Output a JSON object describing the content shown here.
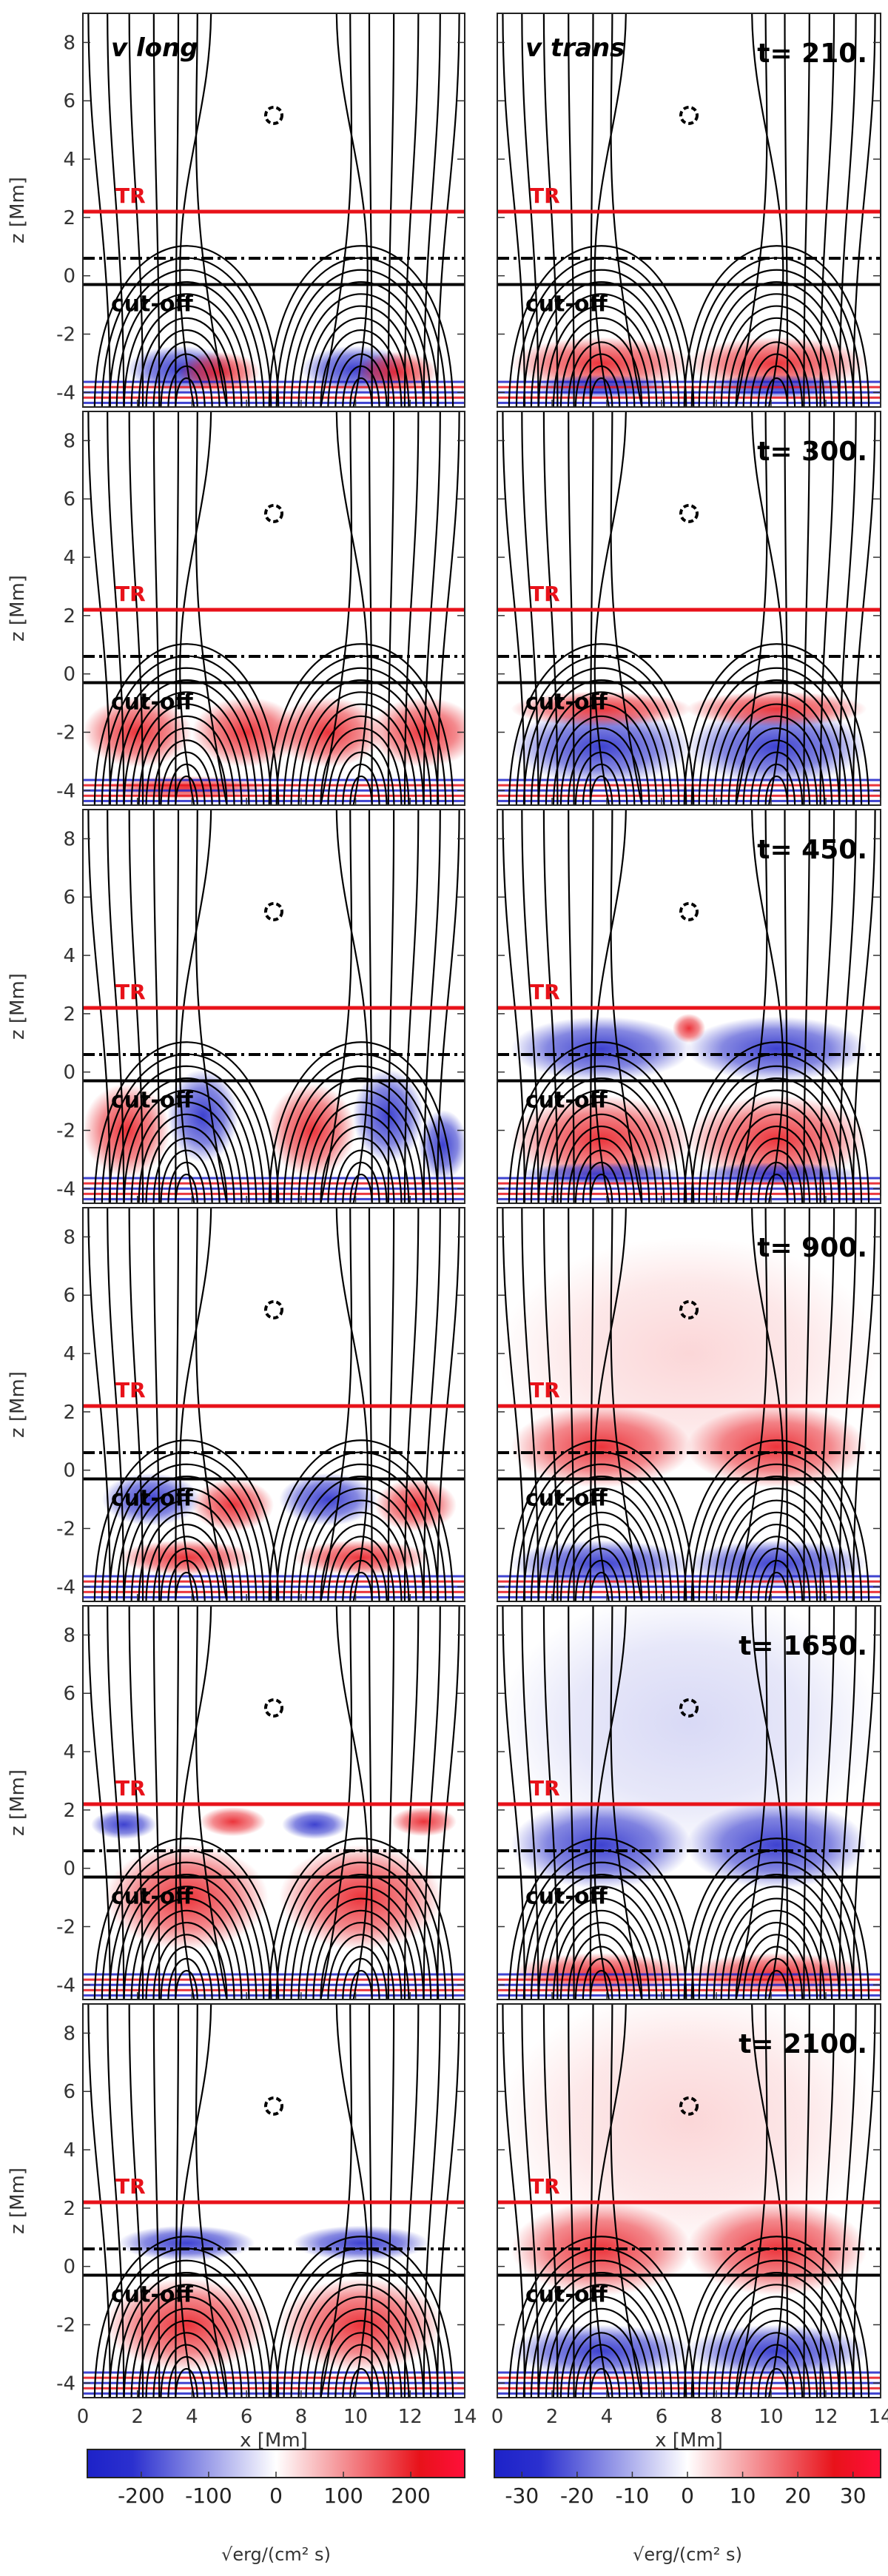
{
  "chart_data": {
    "type": "heatmap",
    "x_axis": {
      "label": "x [Mm]",
      "range": [
        0,
        14
      ],
      "ticks": [
        0,
        2,
        4,
        6,
        8,
        10,
        12,
        14
      ]
    },
    "z_axis": {
      "label": "z [Mm]",
      "range": [
        -4.5,
        9
      ],
      "ticks": [
        -4,
        -2,
        0,
        2,
        4,
        6,
        8
      ]
    },
    "columns": [
      {
        "label": "v long",
        "colorbar": {
          "range": [
            -280,
            280
          ],
          "ticks": [
            -200,
            -100,
            0,
            100,
            200
          ],
          "unit": "√erg/(cm² s)"
        }
      },
      {
        "label": "v trans",
        "colorbar": {
          "range": [
            -35,
            35
          ],
          "ticks": [
            -30,
            -20,
            -10,
            0,
            10,
            20,
            30
          ],
          "unit": "√erg/(cm² s)"
        }
      }
    ],
    "times": [
      "t= 210.",
      "t= 300.",
      "t= 450.",
      "t= 900.",
      "t= 1650.",
      "t= 2100."
    ],
    "annotations": {
      "tr_label": "TR",
      "tr_height": 2.2,
      "cutoff_label": "cut-off",
      "cutoff_height": -0.3,
      "dashdot_height": 0.6,
      "null_point": [
        7,
        5.5
      ]
    },
    "colors": {
      "positive": "#e8121a",
      "negative": "#1d22c8",
      "tr_line": "#e8121a",
      "field_lines": "#000000"
    }
  }
}
